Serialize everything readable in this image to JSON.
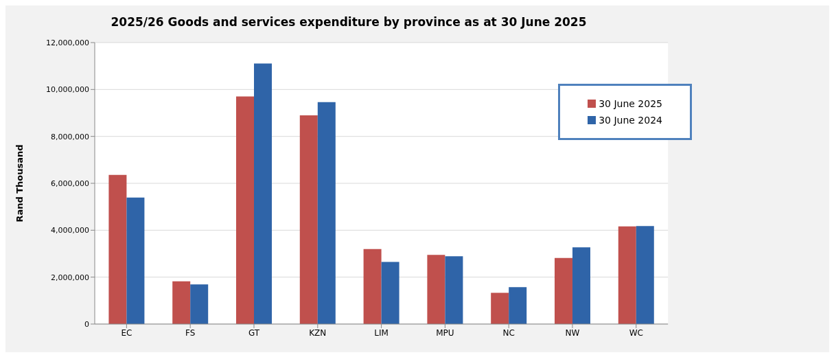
{
  "chart_data": {
    "type": "bar",
    "title": "2025/26 Goods and services expenditure by province as at 30 June 2025",
    "ylabel": "Rand Thousand",
    "categories": [
      "EC",
      "FS",
      "GT",
      "KZN",
      "LIM",
      "MPU",
      "NC",
      "NW",
      "WC"
    ],
    "series": [
      {
        "name": "30 June 2025",
        "color": "#c0504d",
        "values": [
          6360000,
          1820000,
          9700000,
          8900000,
          3200000,
          2950000,
          1330000,
          2820000,
          4160000
        ]
      },
      {
        "name": "30 June 2024",
        "color": "#2f64a8",
        "values": [
          5390000,
          1690000,
          11110000,
          9460000,
          2650000,
          2890000,
          1570000,
          3270000,
          4180000
        ]
      }
    ],
    "ylim": [
      0,
      12000000
    ],
    "yticks": [
      0,
      {
        "value": 2000000,
        "label": "2,000,000"
      },
      {
        "value": 4000000,
        "label": "4,000,000"
      },
      {
        "value": 6000000,
        "label": "6,000,000"
      },
      {
        "value": 8000000,
        "label": "8,000,000"
      },
      {
        "value": 10000000,
        "label": "10,000,000"
      },
      {
        "value": 12000000,
        "label": "12,000,000"
      }
    ],
    "grid": "y",
    "legend": "top right"
  }
}
